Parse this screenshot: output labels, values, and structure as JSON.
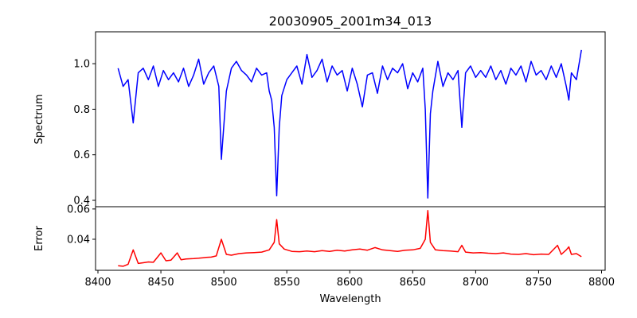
{
  "chart_data": [
    {
      "type": "line",
      "title": "20030905_2001m34_013",
      "ylabel": "Spectrum",
      "xlabel": "",
      "color": "#0000ff",
      "xlim": [
        8400,
        8800
      ],
      "ylim": [
        0.372,
        1.14
      ],
      "yticks": [
        0.4,
        0.6,
        0.8,
        1.0
      ],
      "ytick_labels": [
        "0.4",
        "0.6",
        "0.8",
        "1.0"
      ],
      "x": [
        8416,
        8420,
        8424,
        8428,
        8432,
        8436,
        8440,
        8444,
        8448,
        8452,
        8456,
        8460,
        8464,
        8468,
        8472,
        8476,
        8480,
        8484,
        8488,
        8492,
        8496,
        8498,
        8502,
        8506,
        8510,
        8514,
        8518,
        8522,
        8526,
        8530,
        8534,
        8536,
        8538,
        8540,
        8542,
        8544,
        8546,
        8550,
        8554,
        8558,
        8562,
        8566,
        8570,
        8574,
        8578,
        8582,
        8586,
        8590,
        8594,
        8598,
        8602,
        8606,
        8610,
        8614,
        8618,
        8622,
        8626,
        8630,
        8634,
        8638,
        8642,
        8646,
        8650,
        8654,
        8658,
        8660,
        8662,
        8664,
        8666,
        8670,
        8674,
        8678,
        8682,
        8686,
        8689,
        8692,
        8696,
        8700,
        8704,
        8708,
        8712,
        8716,
        8720,
        8724,
        8728,
        8732,
        8736,
        8740,
        8744,
        8748,
        8752,
        8756,
        8760,
        8764,
        8768,
        8772,
        8774,
        8776,
        8780,
        8784
      ],
      "y": [
        0.98,
        0.9,
        0.93,
        0.74,
        0.96,
        0.98,
        0.93,
        0.99,
        0.9,
        0.97,
        0.93,
        0.96,
        0.92,
        0.98,
        0.9,
        0.95,
        1.02,
        0.91,
        0.96,
        0.99,
        0.9,
        0.58,
        0.88,
        0.98,
        1.01,
        0.97,
        0.95,
        0.92,
        0.98,
        0.95,
        0.96,
        0.88,
        0.84,
        0.72,
        0.42,
        0.72,
        0.86,
        0.93,
        0.96,
        0.99,
        0.91,
        1.04,
        0.94,
        0.97,
        1.02,
        0.92,
        0.99,
        0.95,
        0.97,
        0.88,
        0.98,
        0.91,
        0.81,
        0.95,
        0.96,
        0.87,
        0.99,
        0.93,
        0.98,
        0.96,
        1.0,
        0.89,
        0.96,
        0.92,
        0.98,
        0.8,
        0.41,
        0.78,
        0.88,
        1.01,
        0.9,
        0.96,
        0.93,
        0.97,
        0.72,
        0.96,
        0.99,
        0.94,
        0.97,
        0.94,
        0.99,
        0.93,
        0.97,
        0.91,
        0.98,
        0.95,
        0.99,
        0.92,
        1.01,
        0.95,
        0.97,
        0.93,
        0.99,
        0.94,
        1.0,
        0.9,
        0.84,
        0.96,
        0.93,
        1.06
      ]
    },
    {
      "type": "line",
      "title": "",
      "ylabel": "Error",
      "xlabel": "Wavelength",
      "color": "#ff0000",
      "xlim": [
        8400,
        8800
      ],
      "ylim": [
        0.0195,
        0.0615
      ],
      "yticks": [
        0.04,
        0.06
      ],
      "ytick_labels": [
        "0.04",
        "0.06"
      ],
      "xticks": [
        8400,
        8450,
        8500,
        8550,
        8600,
        8650,
        8700,
        8750,
        8800
      ],
      "xtick_labels": [
        "8400",
        "8450",
        "8500",
        "8550",
        "8600",
        "8650",
        "8700",
        "8750",
        "8800"
      ],
      "x": [
        8416,
        8420,
        8424,
        8428,
        8432,
        8436,
        8440,
        8444,
        8450,
        8454,
        8458,
        8463,
        8466,
        8470,
        8476,
        8480,
        8486,
        8490,
        8494,
        8498,
        8502,
        8506,
        8512,
        8518,
        8524,
        8530,
        8536,
        8540,
        8542,
        8544,
        8548,
        8554,
        8560,
        8566,
        8572,
        8578,
        8584,
        8590,
        8596,
        8602,
        8608,
        8614,
        8620,
        8626,
        8632,
        8638,
        8644,
        8650,
        8656,
        8660,
        8662,
        8664,
        8668,
        8674,
        8680,
        8686,
        8689,
        8692,
        8698,
        8704,
        8710,
        8716,
        8722,
        8728,
        8734,
        8740,
        8746,
        8752,
        8758,
        8765,
        8768,
        8772,
        8774,
        8776,
        8780,
        8784
      ],
      "y": [
        0.0225,
        0.0222,
        0.0235,
        0.033,
        0.024,
        0.0245,
        0.025,
        0.0248,
        0.031,
        0.0258,
        0.0262,
        0.031,
        0.0265,
        0.027,
        0.0272,
        0.0275,
        0.028,
        0.0282,
        0.029,
        0.04,
        0.03,
        0.0295,
        0.0305,
        0.031,
        0.0312,
        0.0315,
        0.033,
        0.038,
        0.053,
        0.037,
        0.0335,
        0.032,
        0.0318,
        0.0322,
        0.0318,
        0.0325,
        0.032,
        0.0328,
        0.0322,
        0.033,
        0.0335,
        0.0328,
        0.0345,
        0.033,
        0.0325,
        0.032,
        0.0328,
        0.033,
        0.034,
        0.04,
        0.059,
        0.038,
        0.033,
        0.0325,
        0.0322,
        0.0318,
        0.036,
        0.0315,
        0.031,
        0.0312,
        0.0308,
        0.0305,
        0.031,
        0.0302,
        0.03,
        0.0305,
        0.0298,
        0.0302,
        0.03,
        0.036,
        0.03,
        0.033,
        0.035,
        0.03,
        0.0305,
        0.0285
      ]
    }
  ]
}
